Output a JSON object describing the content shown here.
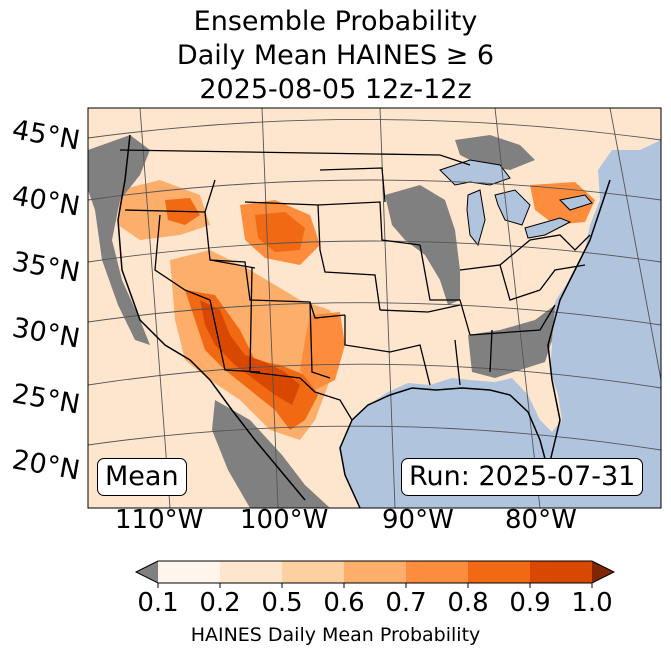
{
  "title": {
    "line1": "Ensemble Probability",
    "line2": "Daily Mean HAINES ≥ 6",
    "line3": "2025-08-05 12z-12z"
  },
  "stat_label": "Mean",
  "run_label": "Run: 2025-07-31",
  "latitude_labels": [
    "45°N",
    "40°N",
    "35°N",
    "30°N",
    "25°N",
    "20°N"
  ],
  "longitude_labels": [
    "110°W",
    "100°W",
    "90°W",
    "80°W"
  ],
  "colorbar": {
    "label": "HAINES Daily Mean Probability",
    "ticks": [
      "0.1",
      "0.2",
      "0.5",
      "0.6",
      "0.7",
      "0.8",
      "0.9",
      "1.0"
    ],
    "colors": [
      "#fff5eb",
      "#fee6ce",
      "#fdd0a2",
      "#fdae6b",
      "#fd8d3c",
      "#f16913",
      "#d94801",
      "#a63603"
    ],
    "under_color": "#808080",
    "over_color": "#7f2704"
  },
  "colors": {
    "ocean": "#b0c4de",
    "missing": "#808080",
    "land_low": "#fee6ce"
  }
}
